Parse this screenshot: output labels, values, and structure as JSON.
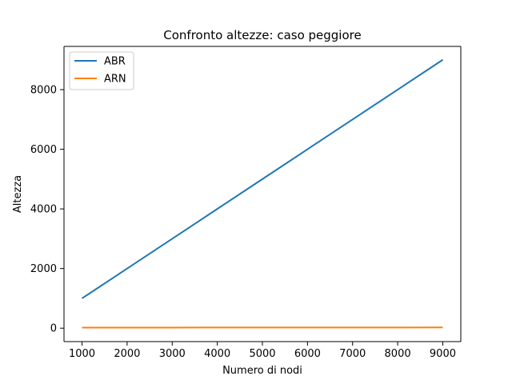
{
  "chart_data": {
    "type": "line",
    "title": "Confronto altezze: caso peggiore",
    "xlabel": "Numero di nodi",
    "ylabel": "Altezza",
    "xlim": [
      600,
      9400
    ],
    "ylim": [
      -450,
      9450
    ],
    "xticks": [
      1000,
      2000,
      3000,
      4000,
      5000,
      6000,
      7000,
      8000,
      9000
    ],
    "yticks": [
      0,
      2000,
      4000,
      6000,
      8000
    ],
    "grid": false,
    "legend_position": "top-left",
    "x": [
      1000,
      2000,
      3000,
      4000,
      5000,
      6000,
      7000,
      8000,
      9000
    ],
    "series": [
      {
        "name": "ABR",
        "color": "#1f77b4",
        "values": [
          1000,
          2000,
          3000,
          4000,
          5000,
          6000,
          7000,
          8000,
          9000
        ]
      },
      {
        "name": "ARN",
        "color": "#ff7f0e",
        "values": [
          18,
          20,
          21,
          22,
          23,
          23,
          24,
          24,
          25
        ]
      }
    ]
  }
}
